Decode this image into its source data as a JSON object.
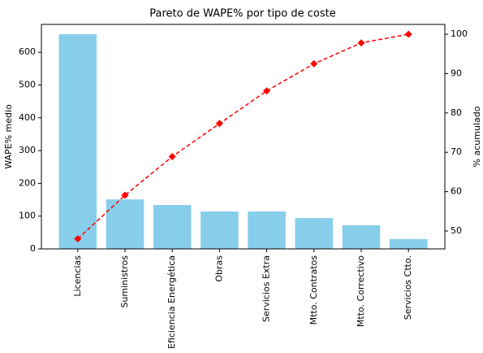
{
  "chart_data": {
    "type": "pareto",
    "title": "Pareto de WAPE% por tipo de coste",
    "categories": [
      "Licencias",
      "Suministros",
      "Eficiencia Energética",
      "Obras",
      "Servicios Extra",
      "Mtto. Contratos",
      "Mtto. Correctivo",
      "Servicios Ctto."
    ],
    "series": [
      {
        "color": "#87ceeb",
        "values": [
          655,
          151,
          134,
          114,
          114,
          94,
          72,
          30
        ]
      },
      {
        "color": "#ff0000",
        "axis": "y2",
        "values": [
          48.0,
          59.1,
          68.9,
          77.3,
          85.6,
          92.5,
          97.8,
          100
        ]
      }
    ],
    "ylabel": "WAPE% medio",
    "y2label": "% acumulado",
    "ylim": [
      0,
      685
    ],
    "yticks": [
      0,
      100,
      200,
      300,
      400,
      500,
      600
    ],
    "y2lim": [
      45.45,
      102.5
    ],
    "y2ticks": [
      50,
      60,
      70,
      80,
      90,
      100
    ],
    "grid": false
  }
}
